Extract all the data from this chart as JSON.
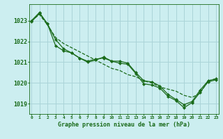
{
  "title": "Graphe pression niveau de la mer (hPa)",
  "background_color": "#cceef0",
  "grid_color": "#aad4d8",
  "line_color": "#1a6b1a",
  "x_ticks": [
    0,
    1,
    2,
    3,
    4,
    5,
    6,
    7,
    8,
    9,
    10,
    11,
    12,
    13,
    14,
    15,
    16,
    17,
    18,
    19,
    20,
    21,
    22,
    23
  ],
  "ylim": [
    1018.5,
    1023.8
  ],
  "yticks": [
    1019,
    1020,
    1021,
    1022,
    1023
  ],
  "series_straight": [
    1023.0,
    1023.3,
    1022.8,
    1022.2,
    1021.9,
    1021.7,
    1021.5,
    1021.3,
    1021.1,
    1020.9,
    1020.7,
    1020.6,
    1020.4,
    1020.3,
    1020.1,
    1020.0,
    1019.8,
    1019.7,
    1019.6,
    1019.4,
    1019.3,
    1019.5,
    1020.1,
    1020.2
  ],
  "series_mid": [
    1022.95,
    1023.35,
    1022.85,
    1022.1,
    1021.65,
    1021.45,
    1021.2,
    1021.05,
    1021.15,
    1021.2,
    1021.05,
    1021.05,
    1020.95,
    1020.5,
    1020.1,
    1020.05,
    1019.85,
    1019.45,
    1019.2,
    1018.95,
    1019.1,
    1019.65,
    1020.1,
    1020.2
  ],
  "series_low": [
    1023.0,
    1023.4,
    1022.85,
    1021.8,
    1021.55,
    1021.45,
    1021.2,
    1021.0,
    1021.1,
    1021.25,
    1021.05,
    1020.95,
    1020.9,
    1020.45,
    1019.95,
    1019.9,
    1019.75,
    1019.35,
    1019.15,
    1018.8,
    1019.05,
    1019.55,
    1020.05,
    1020.15
  ]
}
